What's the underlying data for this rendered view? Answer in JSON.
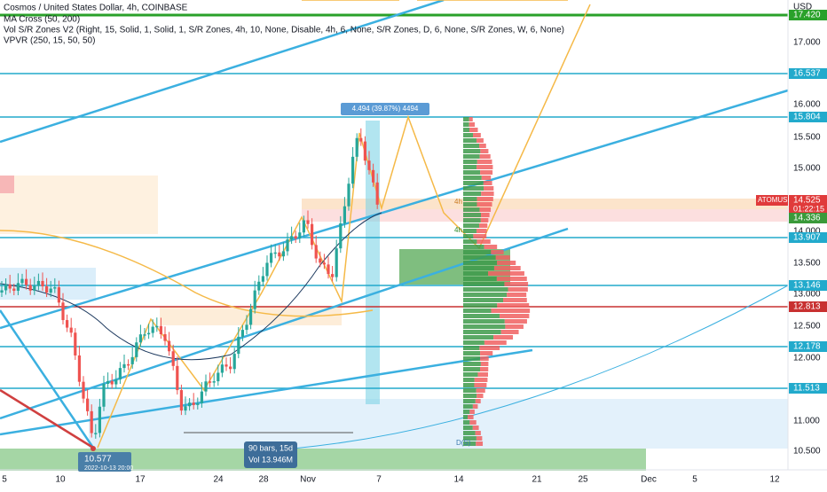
{
  "header": {
    "title": "Cosmos / United States Dollar, 4h, COINBASE",
    "indicators": [
      "MA Cross (50, 200)",
      "Vol S/R Zones V2 (Right, 15, Solid, 1, Solid, 1, S/R Zones, 4h, 10, None, Disable, 4h, 6, None, S/R Zones, D, 6, None, S/R Zones, W, 6, None)",
      "VPVR (250, 15, 50, 50)"
    ]
  },
  "price_axis": {
    "currency": "USD",
    "labels": [
      "17.000",
      "16.000",
      "15.500",
      "15.000",
      "14.000",
      "13.500",
      "13.000",
      "12.500",
      "12.000",
      "11.000",
      "10.500"
    ],
    "badges": [
      "17.420",
      "16.537",
      "15.804",
      "14.336",
      "13.907",
      "13.146",
      "12.813",
      "12.178",
      "11.513"
    ],
    "symbol": "ATOMUSD",
    "last_price": "14.525",
    "countdown": "01:22:15"
  },
  "time_axis": {
    "labels": [
      "5",
      "10",
      "17",
      "24",
      "28",
      "Nov",
      "7",
      "14",
      "21",
      "25",
      "Dec",
      "5",
      "12"
    ]
  },
  "annotations": {
    "range_top": "4.494 (39.87%) 4494",
    "low_price": "10.577",
    "low_time": "2022-10-13 20:00",
    "range_bars": "90 bars, 15d",
    "range_volume": "Vol 13.946M",
    "zone_4h_a": "4h",
    "zone_4h_b": "4h",
    "zone_d": "D(S)"
  }
}
